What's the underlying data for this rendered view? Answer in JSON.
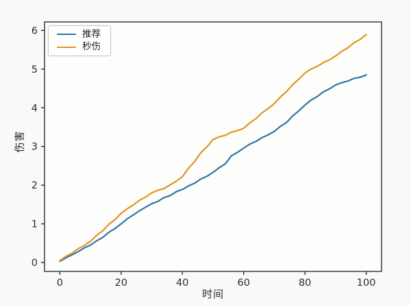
{
  "figure": {
    "background": "#faf9f7",
    "plot_background": "#fdfdfc",
    "spine_color": "#2e2e2e",
    "tick_label_color": "#2b2b2b"
  },
  "legend": {
    "position": "top-left",
    "items": [
      {
        "label": "推荐",
        "color": "#2d74a4"
      },
      {
        "label": "秒伤",
        "color": "#e2941e"
      }
    ]
  },
  "chart_data": {
    "type": "line",
    "title": "",
    "xlabel": "时间",
    "ylabel": "伤害",
    "xlim": [
      -5,
      105
    ],
    "ylim": [
      -0.23,
      6.22
    ],
    "x_ticks": [
      0,
      20,
      40,
      60,
      80,
      100
    ],
    "y_ticks": [
      0,
      1,
      2,
      3,
      4,
      5,
      6
    ],
    "grid": false,
    "legend_position": "upper left",
    "x": [
      0,
      2,
      4,
      6,
      8,
      10,
      12,
      14,
      16,
      18,
      20,
      22,
      24,
      26,
      28,
      30,
      32,
      34,
      36,
      38,
      40,
      42,
      44,
      46,
      48,
      50,
      52,
      54,
      56,
      58,
      60,
      62,
      64,
      66,
      68,
      70,
      72,
      74,
      76,
      78,
      80,
      82,
      84,
      86,
      88,
      90,
      92,
      94,
      96,
      98,
      100
    ],
    "series": [
      {
        "name": "推荐",
        "color": "#2d74a4",
        "values": [
          0.03,
          0.12,
          0.2,
          0.28,
          0.38,
          0.45,
          0.56,
          0.65,
          0.78,
          0.88,
          1.0,
          1.13,
          1.23,
          1.34,
          1.43,
          1.52,
          1.58,
          1.68,
          1.73,
          1.83,
          1.89,
          1.98,
          2.05,
          2.16,
          2.23,
          2.33,
          2.45,
          2.55,
          2.76,
          2.85,
          2.96,
          3.06,
          3.13,
          3.23,
          3.3,
          3.39,
          3.52,
          3.62,
          3.79,
          3.92,
          4.07,
          4.2,
          4.29,
          4.41,
          4.49,
          4.59,
          4.65,
          4.69,
          4.76,
          4.79,
          4.85
        ]
      },
      {
        "name": "秒伤",
        "color": "#e2941e",
        "values": [
          0.05,
          0.16,
          0.24,
          0.36,
          0.44,
          0.55,
          0.7,
          0.82,
          0.99,
          1.11,
          1.27,
          1.39,
          1.49,
          1.61,
          1.69,
          1.8,
          1.87,
          1.91,
          2.01,
          2.1,
          2.22,
          2.44,
          2.61,
          2.84,
          2.99,
          3.18,
          3.25,
          3.29,
          3.37,
          3.41,
          3.47,
          3.61,
          3.72,
          3.87,
          3.98,
          4.11,
          4.28,
          4.42,
          4.6,
          4.74,
          4.9,
          5.0,
          5.07,
          5.17,
          5.24,
          5.34,
          5.46,
          5.55,
          5.68,
          5.77,
          5.89
        ]
      }
    ]
  }
}
